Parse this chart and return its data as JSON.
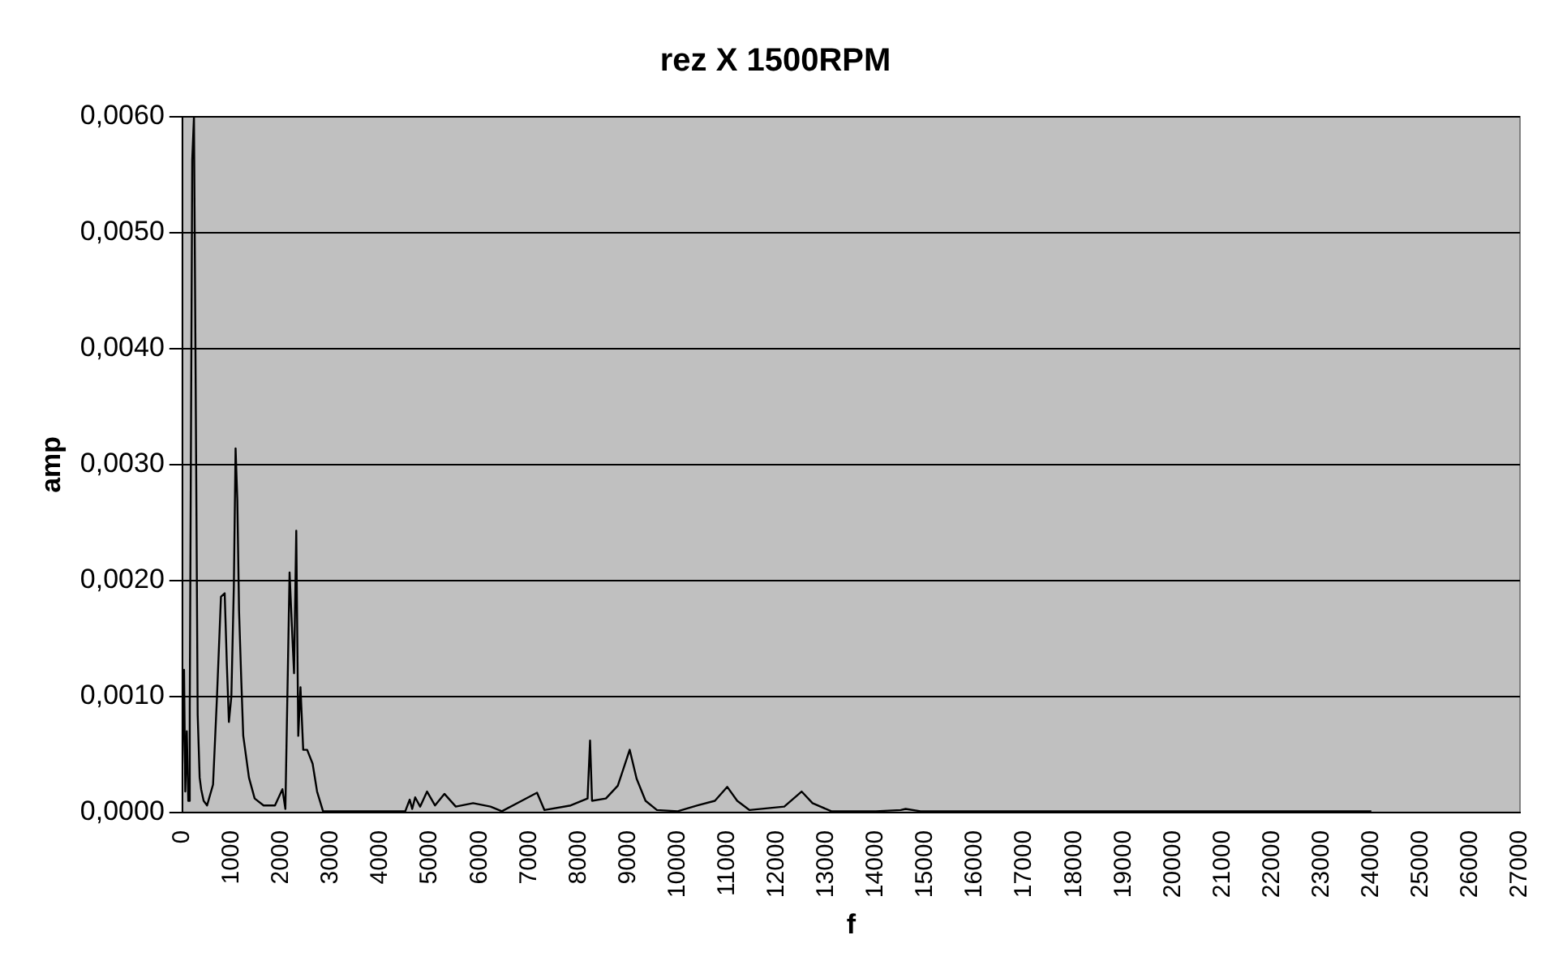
{
  "chart_data": {
    "type": "line",
    "title": "rez X 1500RPM",
    "xlabel": "f",
    "ylabel": "amp",
    "x": [
      0,
      35,
      60,
      90,
      120,
      150,
      200,
      235,
      270,
      310,
      350,
      380,
      430,
      500,
      620,
      700,
      780,
      855,
      900,
      940,
      990,
      1040,
      1075,
      1110,
      1145,
      1190,
      1230,
      1345,
      1460,
      1640,
      1870,
      2020,
      2080,
      2165,
      2210,
      2255,
      2300,
      2340,
      2385,
      2440,
      2520,
      2630,
      2720,
      2840,
      3200,
      4000,
      4500,
      4590,
      4640,
      4700,
      4800,
      4940,
      5100,
      5290,
      5520,
      5870,
      6220,
      6450,
      6850,
      7160,
      7310,
      7840,
      8180,
      8230,
      8270,
      8550,
      8790,
      9030,
      9170,
      9350,
      9580,
      10000,
      10400,
      10750,
      11000,
      11200,
      11450,
      12150,
      12500,
      12720,
      13100,
      14000,
      14500,
      14600,
      14900,
      15650,
      17000,
      20000,
      22000,
      24000
    ],
    "series": [
      {
        "color": "#000000",
        "values": [
          0.0004,
          0.00123,
          0.00018,
          0.0007,
          0.0001,
          0.0009,
          0.00563,
          0.006,
          0.00365,
          0.00084,
          0.0003,
          0.0002,
          0.0001,
          6e-05,
          0.00024,
          0.001,
          0.00186,
          0.00189,
          0.00126,
          0.00078,
          0.001,
          0.00195,
          0.00314,
          0.0027,
          0.00174,
          0.00114,
          0.00066,
          0.0003,
          0.00012,
          6e-05,
          6e-05,
          0.0002,
          3e-05,
          0.00207,
          0.00162,
          0.0012,
          0.00243,
          0.00066,
          0.00108,
          0.00054,
          0.00054,
          0.00042,
          0.00018,
          1e-05,
          1e-05,
          1e-05,
          1e-05,
          0.00011,
          3e-05,
          0.00013,
          5e-05,
          0.00018,
          6e-05,
          0.00016,
          5e-05,
          8e-05,
          5e-05,
          1e-05,
          0.0001,
          0.00017,
          2e-05,
          6e-05,
          0.00012,
          0.00062,
          0.0001,
          0.00012,
          0.00023,
          0.00054,
          0.00029,
          0.0001,
          2e-05,
          1e-05,
          6e-05,
          0.0001,
          0.00022,
          0.0001,
          2e-05,
          5e-05,
          0.00018,
          8e-05,
          1e-05,
          1e-05,
          2e-05,
          3e-05,
          1e-05,
          1e-05,
          1e-05,
          1e-05,
          1e-05,
          1e-05
        ]
      }
    ],
    "xlim": [
      0,
      27000
    ],
    "xticks": [
      0,
      1000,
      2000,
      3000,
      4000,
      5000,
      6000,
      7000,
      8000,
      9000,
      10000,
      11000,
      12000,
      13000,
      14000,
      15000,
      16000,
      17000,
      18000,
      19000,
      20000,
      21000,
      22000,
      23000,
      24000,
      25000,
      26000,
      27000
    ],
    "ylim": [
      0,
      0.006
    ],
    "yticks": [
      {
        "value": 0,
        "label": "0,0000"
      },
      {
        "value": 0.001,
        "label": "0,0010"
      },
      {
        "value": 0.002,
        "label": "0,0020"
      },
      {
        "value": 0.003,
        "label": "0,0030"
      },
      {
        "value": 0.004,
        "label": "0,0040"
      },
      {
        "value": 0.005,
        "label": "0,0050"
      },
      {
        "value": 0.006,
        "label": "0,0060"
      }
    ],
    "grid": "y",
    "legend": false,
    "marker": "none",
    "line_style": "solid"
  }
}
